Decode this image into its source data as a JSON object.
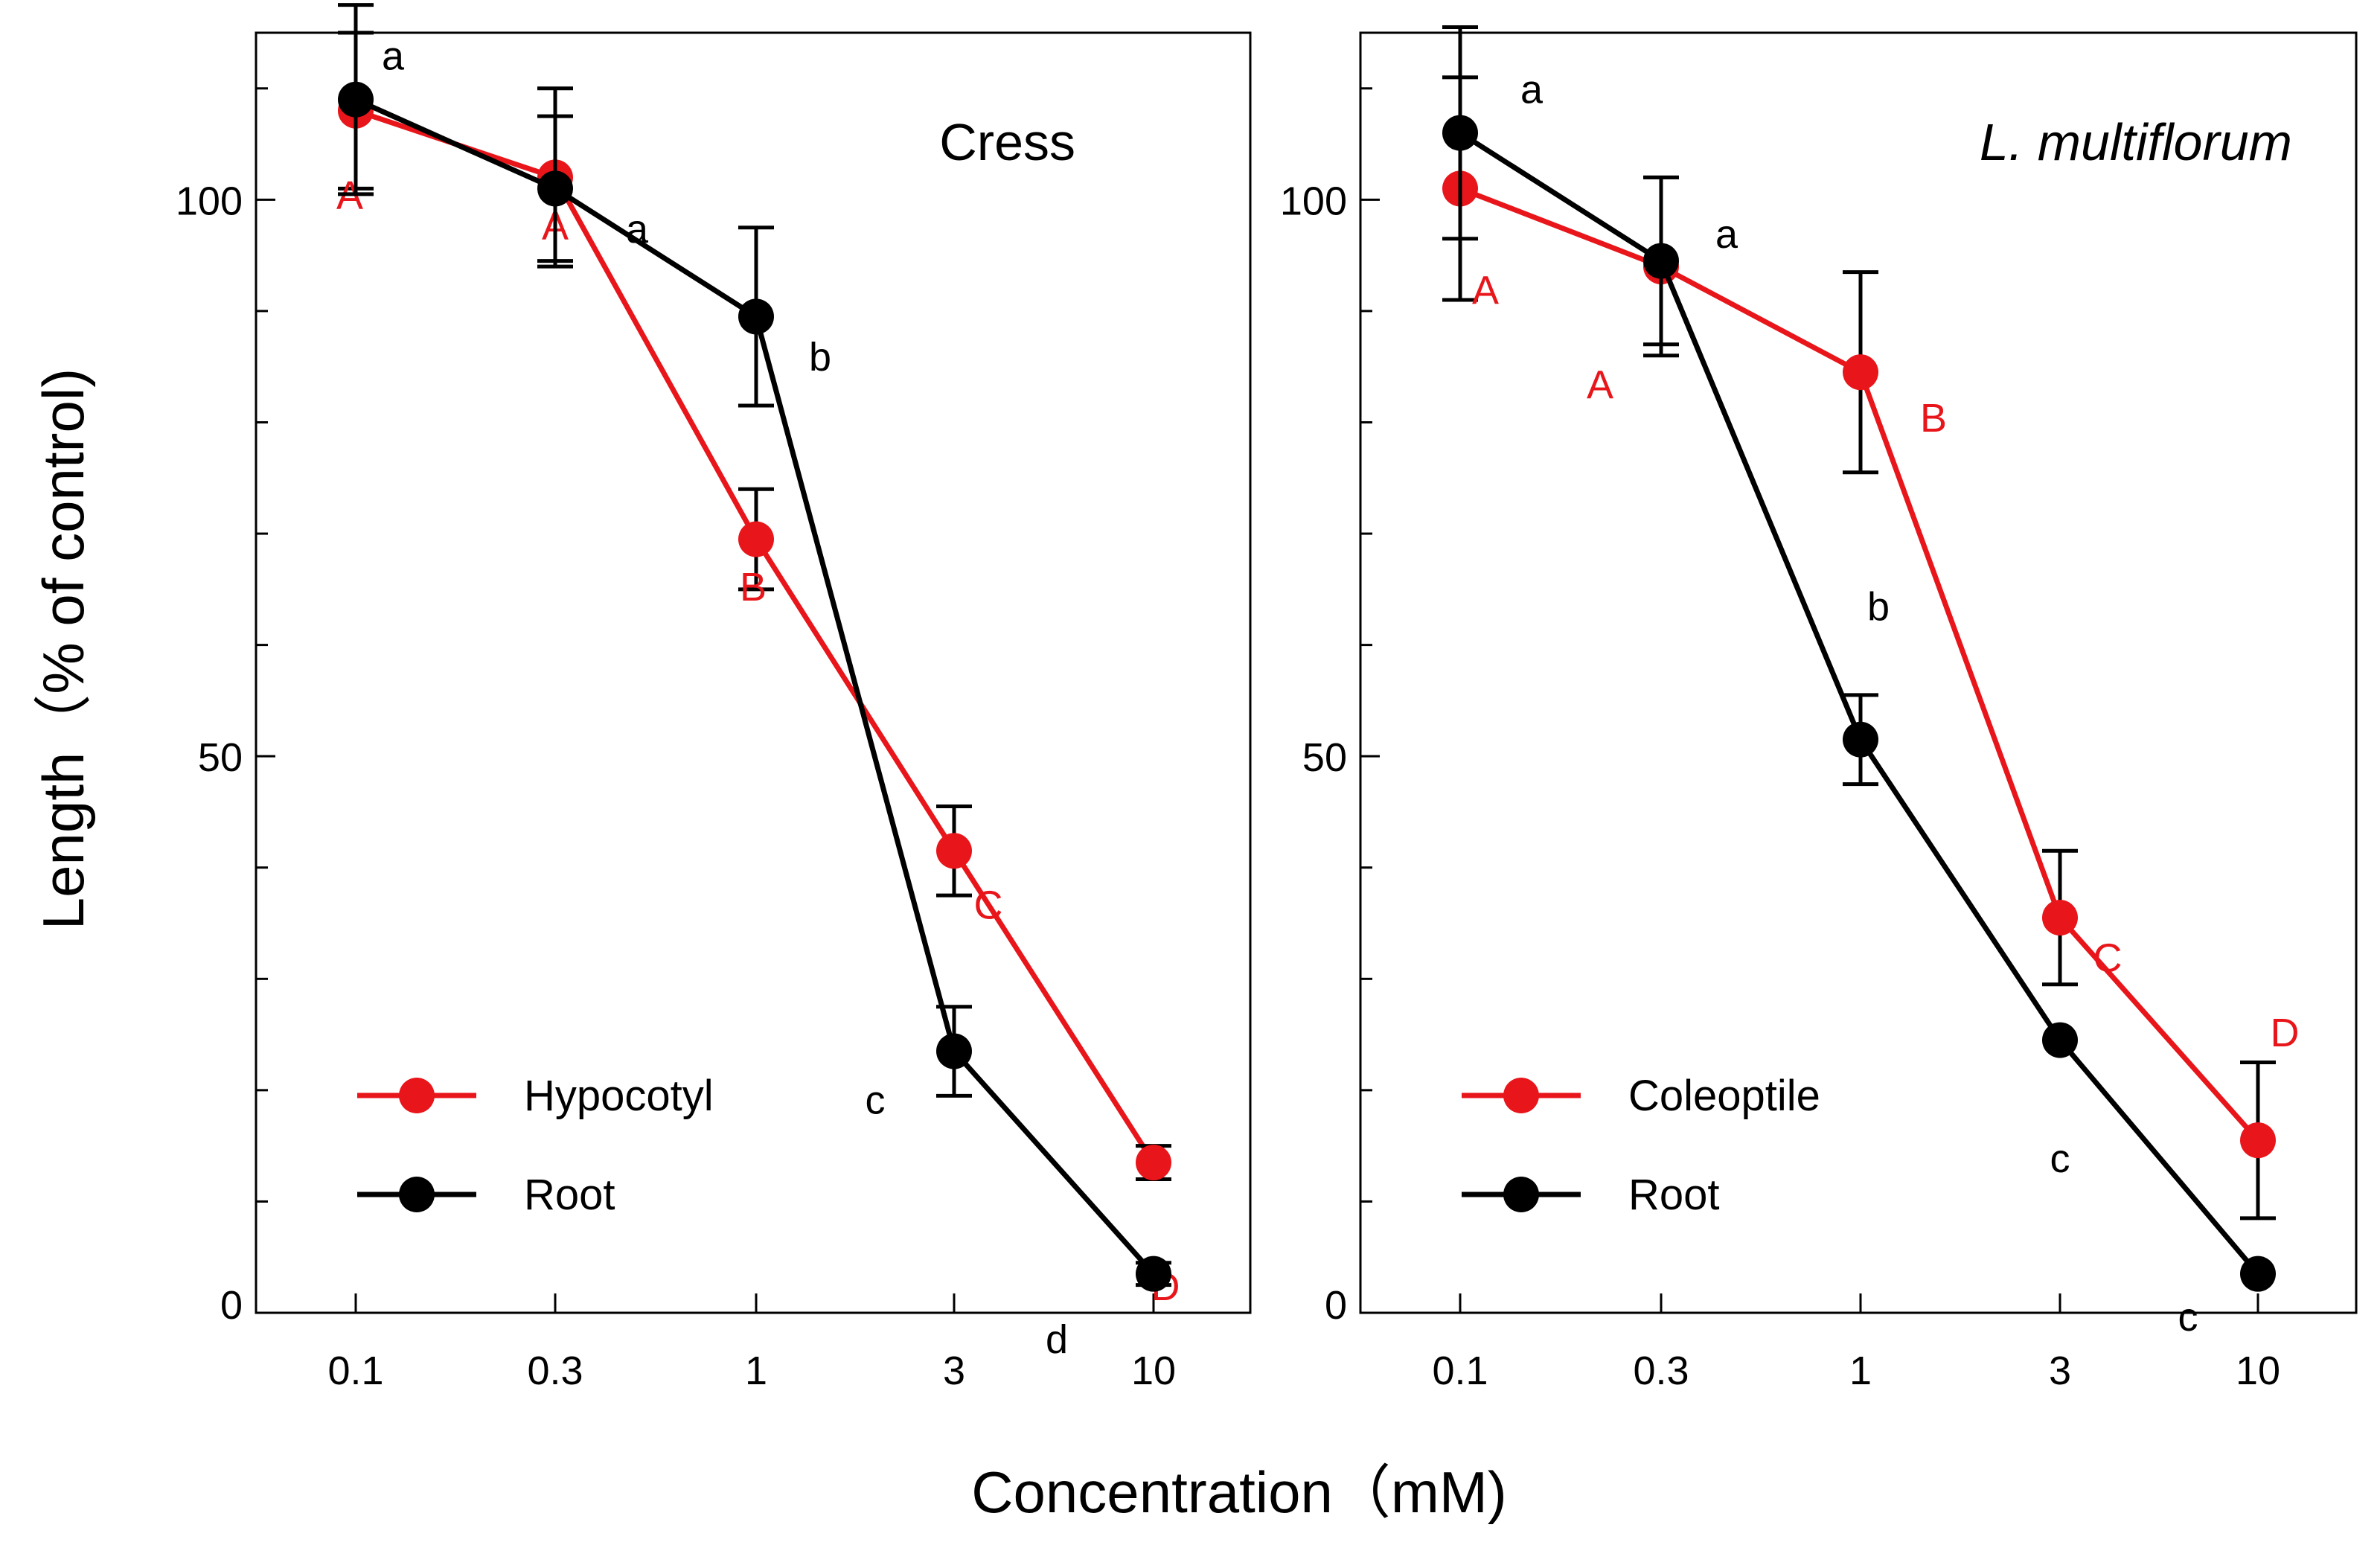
{
  "colors": {
    "hypocotyl": "#e8161b",
    "root": "#000000",
    "coleoptile": "#e8161b"
  },
  "axes": {
    "ylabel": "Length（% of control)",
    "xlabel": "Concentration（mM)"
  },
  "chart_data": [
    {
      "type": "line",
      "title": "Cress",
      "title_italic": false,
      "categories": [
        "0.1",
        "0.3",
        "1",
        "3",
        "10"
      ],
      "ylim": [
        0,
        115
      ],
      "yticks": [
        0,
        50,
        100
      ],
      "series": [
        {
          "name": "Hypocotyl",
          "color_key": "hypocotyl",
          "values": [
            108,
            102,
            69.5,
            41.5,
            13.5
          ],
          "errors": [
            7,
            8,
            4.5,
            4,
            1.5
          ],
          "sig": [
            "A",
            "A",
            "B",
            "C",
            "D"
          ]
        },
        {
          "name": "Root",
          "color_key": "root",
          "values": [
            109,
            101,
            89.5,
            23.5,
            3.5
          ],
          "errors": [
            8.5,
            6.5,
            8,
            4,
            1
          ],
          "sig": [
            "a",
            "a",
            "b",
            "c",
            "d"
          ]
        }
      ]
    },
    {
      "type": "line",
      "title": "L. multiflorum",
      "title_italic": true,
      "categories": [
        "0.1",
        "0.3",
        "1",
        "3",
        "10"
      ],
      "ylim": [
        0,
        115
      ],
      "yticks": [
        0,
        50,
        100
      ],
      "series": [
        {
          "name": "Coleoptile",
          "color_key": "coleoptile",
          "values": [
            101,
            94,
            84.5,
            35.5,
            15.5
          ],
          "errors": [
            10,
            8,
            9,
            6,
            7
          ],
          "sig": [
            "A",
            "A",
            "B",
            "C",
            "D"
          ]
        },
        {
          "name": "Root",
          "color_key": "root",
          "values": [
            106,
            94.5,
            51.5,
            24.5,
            3.5
          ],
          "errors": [
            9.5,
            7.5,
            4,
            0.5,
            0.5
          ],
          "sig": [
            "a",
            "a",
            "b",
            "c",
            "c"
          ]
        }
      ]
    }
  ]
}
